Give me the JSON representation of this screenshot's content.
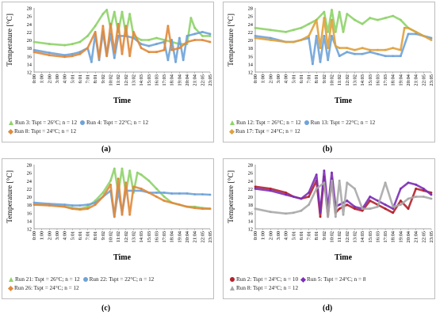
{
  "chart_data": [
    {
      "panel": "(a)",
      "type": "line",
      "ylabel": "Temperature [°C]",
      "xlabel": "Time",
      "ylim": [
        12,
        28
      ],
      "yticks": [
        12,
        14,
        16,
        18,
        20,
        22,
        24,
        26,
        28
      ],
      "xticks": [
        "0:00",
        "1:00",
        "2:00",
        "3:00",
        "4:00",
        "5:01",
        "6:01",
        "7:01",
        "8:01",
        "9:02",
        "10:02",
        "11:02",
        "12:02",
        "13:02",
        "14:03",
        "15:03",
        "16:03",
        "17:03",
        "18:04",
        "19:04",
        "20:04",
        "21:04",
        "22:05",
        "23:05"
      ],
      "legend": [
        {
          "label": "Run 3: Tspt = 26°C; n = 12",
          "color": "#8fd36a",
          "marker": "triangle"
        },
        {
          "label": "Run 4: Tspt = 22°C; n = 12",
          "color": "#6fa3d8",
          "marker": "circle"
        },
        {
          "label": "Run 8: Tspt = 24°C; n = 12",
          "color": "#e08a3c",
          "marker": "diamond"
        }
      ],
      "series": [
        {
          "name": "Run 3: Tspt = 26°C; n = 12",
          "color": "#8fd36a",
          "x": [
            0,
            2,
            4,
            5,
            6,
            7,
            8,
            9,
            9.5,
            10,
            10.5,
            11,
            11.5,
            12,
            12.5,
            13,
            14,
            15,
            16,
            17,
            18,
            19,
            20,
            20.5,
            21,
            22,
            23
          ],
          "y": [
            19.5,
            19,
            18.7,
            19,
            19.5,
            21,
            23.5,
            26.5,
            27.5,
            23,
            27,
            22,
            27,
            21.5,
            26.5,
            21,
            20,
            20,
            20.5,
            20,
            19.5,
            19,
            19,
            25.5,
            23,
            21,
            21
          ]
        },
        {
          "name": "Run 4: Tspt = 22°C; n = 12",
          "color": "#6fa3d8",
          "x": [
            0,
            2,
            4,
            5,
            6,
            7,
            7.5,
            8,
            8.5,
            9,
            9.5,
            10,
            10.5,
            11,
            12,
            13,
            14,
            15,
            16,
            17,
            17.5,
            18,
            18.5,
            19,
            19.5,
            20,
            21,
            22,
            23
          ],
          "y": [
            17.5,
            16.8,
            16.2,
            16.5,
            17,
            18,
            14.5,
            21.5,
            15,
            22,
            16,
            21.5,
            15.5,
            21,
            21,
            20.5,
            19,
            18.5,
            19,
            19.5,
            15,
            20,
            14.5,
            20.5,
            15,
            21,
            21.5,
            22,
            21.5
          ]
        },
        {
          "name": "Run 8: Tspt = 24°C; n = 12",
          "color": "#e08a3c",
          "x": [
            0,
            2,
            4,
            5,
            6,
            7,
            8,
            8.5,
            9,
            9.5,
            10,
            10.5,
            11,
            11.5,
            12,
            12.5,
            13,
            14,
            15,
            16,
            17,
            17.5,
            18,
            19,
            20,
            21,
            22,
            23
          ],
          "y": [
            17,
            16.2,
            15.8,
            16,
            16.5,
            18,
            22,
            15.5,
            23.5,
            16,
            24,
            17,
            24,
            16.5,
            23.5,
            16,
            22,
            18,
            17,
            17,
            17.5,
            23.5,
            17.5,
            18,
            19.5,
            20,
            20,
            19.5
          ]
        }
      ]
    },
    {
      "panel": "(b)",
      "type": "line",
      "ylabel": "Temperature [°C]",
      "xlabel": "Time",
      "ylim": [
        12,
        28
      ],
      "yticks": [
        12,
        14,
        16,
        18,
        20,
        22,
        24,
        26,
        28
      ],
      "xticks": [
        "0:00",
        "1:00",
        "2:00",
        "3:00",
        "4:00",
        "5:01",
        "6:01",
        "7:01",
        "8:01",
        "9:02",
        "10:02",
        "11:02",
        "12:02",
        "13:02",
        "14:03",
        "15:03",
        "16:03",
        "17:03",
        "18:04",
        "19:04",
        "20:04",
        "21:04",
        "22:05",
        "23:05"
      ],
      "legend": [
        {
          "label": "Run 12: Tspt = 26°C; n = 12",
          "color": "#8fd36a",
          "marker": "triangle"
        },
        {
          "label": "Run 13: Tspt = 22°C; n = 12",
          "color": "#6fa3d8",
          "marker": "circle"
        },
        {
          "label": "Run 17: Tspt = 24°C; n = 12",
          "color": "#e0a13c",
          "marker": "diamond"
        }
      ],
      "series": [
        {
          "name": "Run 12: Tspt = 26°C; n = 12",
          "color": "#8fd36a",
          "x": [
            0,
            2,
            4,
            5,
            6,
            7,
            8,
            9,
            9.5,
            10,
            10.5,
            11,
            11.5,
            12,
            13,
            14,
            15,
            16,
            17,
            18,
            19,
            20,
            21,
            22,
            23
          ],
          "y": [
            23,
            22.5,
            22,
            22.5,
            23,
            24,
            25,
            27,
            22,
            27.5,
            22,
            27,
            22,
            26.5,
            25,
            24,
            25.5,
            25,
            25.5,
            26,
            25,
            23,
            22,
            21,
            20.5
          ]
        },
        {
          "name": "Run 13: Tspt = 22°C; n = 12",
          "color": "#6fa3d8",
          "x": [
            0,
            2,
            4,
            5,
            6,
            7,
            7.5,
            8,
            8.5,
            9,
            9.5,
            10,
            11,
            12,
            13,
            14,
            15,
            16,
            17,
            18,
            19,
            20,
            21,
            22,
            23
          ],
          "y": [
            21,
            20.5,
            19.5,
            19.5,
            20,
            20.5,
            14,
            21,
            14.5,
            21,
            15,
            21,
            16,
            17,
            16.5,
            16.5,
            17,
            16.5,
            16,
            16,
            16,
            21.5,
            21.5,
            21,
            20.5
          ]
        },
        {
          "name": "Run 17: Tspt = 24°C; n = 12",
          "color": "#e0a13c",
          "x": [
            0,
            2,
            4,
            5,
            6,
            7,
            8,
            8.5,
            9,
            9.5,
            10,
            10.5,
            11,
            12,
            13,
            14,
            15,
            16,
            17,
            18,
            19,
            19.5,
            20,
            21,
            22,
            23
          ],
          "y": [
            20.5,
            20,
            19.5,
            19.5,
            20,
            21,
            25,
            18,
            25.5,
            18,
            25,
            18.5,
            18,
            18,
            17.5,
            18,
            17.5,
            17.5,
            17.5,
            18,
            17.5,
            23,
            23,
            22,
            21,
            20
          ]
        }
      ]
    },
    {
      "panel": "(c)",
      "type": "line",
      "ylabel": "Temperature [°C]",
      "xlabel": "Time",
      "ylim": [
        12,
        28
      ],
      "yticks": [
        12,
        14,
        16,
        18,
        20,
        22,
        24,
        26,
        28
      ],
      "xticks": [
        "0:00",
        "1:00",
        "2:00",
        "3:00",
        "4:00",
        "5:01",
        "6:01",
        "7:01",
        "8:01",
        "9:02",
        "10:02",
        "11:02",
        "12:02",
        "13:02",
        "14:03",
        "15:03",
        "16:03",
        "17:03",
        "18:04",
        "19:04",
        "20:04",
        "21:04",
        "22:05",
        "23:05"
      ],
      "legend": [
        {
          "label": "Run 21: Tspt = 26°C; n = 12",
          "color": "#8fd36a",
          "marker": "triangle"
        },
        {
          "label": "Run 22: Tspt = 22°C; n = 12",
          "color": "#6fa3d8",
          "marker": "circle"
        },
        {
          "label": "Run 26: Tspt = 24°C; n = 12",
          "color": "#e08a3c",
          "marker": "diamond"
        }
      ],
      "series": [
        {
          "name": "Run 21: Tspt = 26°C; n = 12",
          "color": "#8fd36a",
          "x": [
            0,
            2,
            4,
            5,
            6,
            7,
            8,
            9,
            10,
            10.5,
            11,
            11.5,
            12,
            12.5,
            13,
            13.5,
            14,
            15,
            16,
            17,
            18,
            19,
            20,
            21,
            22,
            23
          ],
          "y": [
            18,
            18,
            17.5,
            17.2,
            17,
            17.5,
            19,
            21,
            24,
            27,
            21,
            27,
            21,
            26.5,
            21,
            26,
            25.5,
            24,
            22,
            20,
            18.5,
            18,
            17.5,
            17.5,
            17.2,
            17
          ]
        },
        {
          "name": "Run 22: Tspt = 22°C; n = 12",
          "color": "#6fa3d8",
          "x": [
            0,
            2,
            4,
            5,
            6,
            7,
            8,
            9,
            10,
            10.5,
            11,
            11.5,
            12,
            13,
            14,
            15,
            16,
            17,
            18,
            19,
            20,
            21,
            22,
            23
          ],
          "y": [
            18.5,
            18.2,
            18,
            17.8,
            17.8,
            18,
            18.5,
            20,
            21.5,
            15,
            21.5,
            16,
            21.5,
            21.5,
            21.5,
            21,
            21,
            21,
            20.8,
            20.8,
            20.8,
            20.6,
            20.6,
            20.5
          ]
        },
        {
          "name": "Run 26: Tspt = 24°C; n = 12",
          "color": "#e08a3c",
          "x": [
            0,
            2,
            4,
            5,
            6,
            7,
            8,
            9,
            10,
            10.5,
            11,
            11.5,
            12,
            12.5,
            13,
            14,
            15,
            16,
            17,
            18,
            19,
            20,
            21,
            22,
            23
          ],
          "y": [
            18,
            17.8,
            17.5,
            17,
            16.8,
            17,
            18,
            20,
            23,
            15,
            24.5,
            15.5,
            23.5,
            15.5,
            22.5,
            22,
            21,
            20,
            19,
            18.5,
            18,
            17.5,
            17.2,
            17,
            17
          ]
        }
      ]
    },
    {
      "panel": "(d)",
      "type": "line",
      "ylabel": "Temperature [°C]",
      "xlabel": "Time",
      "ylim": [
        12,
        28
      ],
      "yticks": [
        12,
        14,
        16,
        18,
        20,
        22,
        24,
        26,
        28
      ],
      "xticks": [
        "0:00",
        "1:00",
        "2:00",
        "3:00",
        "4:00",
        "5:01",
        "6:01",
        "7:01",
        "8:01",
        "9:02",
        "10:02",
        "11:02",
        "12:02",
        "13:02",
        "14:03",
        "15:03",
        "16:03",
        "17:03",
        "18:04",
        "19:04",
        "20:04",
        "21:04",
        "22:05",
        "23:05"
      ],
      "legend": [
        {
          "label": "Run 2: Tspt = 24°C; n = 10",
          "color": "#b3222b",
          "marker": "circle"
        },
        {
          "label": "Run 5: Tspt = 24°C; n = 8",
          "color": "#7b2fb5",
          "marker": "diamond"
        },
        {
          "label": "Run 8: Tspt = 24°C; n = 12",
          "color": "#a8a8a8",
          "marker": "triangle"
        }
      ],
      "series": [
        {
          "name": "Run 2: Tspt = 24°C; n = 10",
          "color": "#b3222b",
          "x": [
            0,
            2,
            4,
            5,
            6,
            7,
            8,
            8.5,
            9,
            9.5,
            10,
            10.5,
            11,
            12,
            13,
            14,
            15,
            16,
            17,
            18,
            19,
            20,
            21,
            22,
            23
          ],
          "y": [
            22.5,
            22,
            21,
            20,
            19.5,
            20,
            24,
            15,
            25,
            15,
            24.5,
            16,
            17,
            18,
            17,
            16.5,
            19,
            18,
            17,
            16,
            19,
            17,
            22,
            21.5,
            21
          ]
        },
        {
          "name": "Run 5: Tspt = 24°C; n = 8",
          "color": "#7b2fb5",
          "x": [
            0,
            2,
            4,
            5,
            6,
            7,
            8,
            8.5,
            9,
            9.5,
            10,
            10.5,
            11,
            12,
            13,
            14,
            15,
            16,
            17,
            18,
            19,
            20,
            21,
            22,
            23
          ],
          "y": [
            22,
            21.5,
            20.5,
            20,
            19.5,
            21,
            25.5,
            16,
            26.5,
            17,
            26,
            17.5,
            18,
            19,
            17.5,
            17,
            20,
            19,
            18,
            17,
            22,
            23.5,
            23,
            22,
            20.5
          ]
        },
        {
          "name": "Run 8: Tspt = 24°C; n = 12",
          "color": "#a8a8a8",
          "x": [
            0,
            2,
            4,
            5,
            6,
            7,
            8,
            9,
            9.5,
            10,
            10.5,
            11,
            11.5,
            12,
            13,
            14,
            15,
            16,
            17,
            18,
            19,
            20,
            21,
            22,
            23
          ],
          "y": [
            17,
            16.2,
            15.8,
            16,
            16.5,
            18,
            22,
            23.5,
            15,
            24,
            15,
            24,
            15.5,
            23.5,
            22,
            17,
            17,
            17.5,
            23.5,
            17.5,
            18,
            19.5,
            20,
            20,
            19.5
          ]
        }
      ]
    }
  ],
  "panels": [
    {
      "label": "(a)"
    },
    {
      "label": "(b)"
    },
    {
      "label": "(c)"
    },
    {
      "label": "(d)"
    }
  ]
}
